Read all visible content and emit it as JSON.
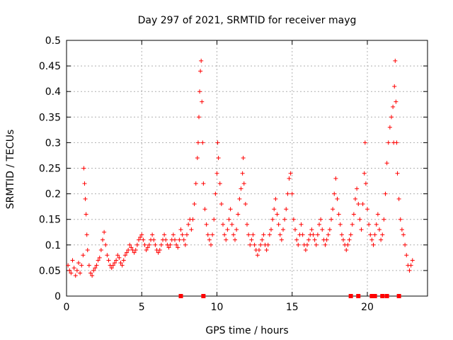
{
  "chart_data": {
    "type": "scatter",
    "title": "Day 297 of 2021, SRMTID for receiver mayg",
    "xlabel": "GPS time / hours",
    "ylabel": "SRMTID / TECUs",
    "xlim": [
      0,
      24
    ],
    "ylim": [
      0,
      0.5
    ],
    "grid": true,
    "x_ticks": [
      0,
      5,
      10,
      15,
      20
    ],
    "x_tick_labels": [
      "0",
      "5",
      "10",
      "15",
      "20"
    ],
    "y_ticks": [
      0,
      0.05,
      0.1,
      0.15,
      0.2,
      0.25,
      0.3,
      0.35,
      0.4,
      0.45,
      0.5
    ],
    "y_tick_labels": [
      "0",
      "0.05",
      "0.1",
      "0.15",
      "0.2",
      "0.25",
      "0.3",
      "0.35",
      "0.4",
      "0.45",
      "0.5"
    ],
    "marker": "plus",
    "color": "#ff0000",
    "series": [
      {
        "name": "SRMTID",
        "points": [
          [
            0.1,
            0.06
          ],
          [
            0.2,
            0.05
          ],
          [
            0.3,
            0.045
          ],
          [
            0.4,
            0.07
          ],
          [
            0.5,
            0.055
          ],
          [
            0.6,
            0.04
          ],
          [
            0.7,
            0.05
          ],
          [
            0.8,
            0.065
          ],
          [
            0.9,
            0.045
          ],
          [
            1.0,
            0.06
          ],
          [
            1.1,
            0.08
          ],
          [
            1.15,
            0.25
          ],
          [
            1.2,
            0.22
          ],
          [
            1.25,
            0.19
          ],
          [
            1.3,
            0.16
          ],
          [
            1.35,
            0.12
          ],
          [
            1.4,
            0.09
          ],
          [
            1.5,
            0.06
          ],
          [
            1.6,
            0.045
          ],
          [
            1.7,
            0.04
          ],
          [
            1.8,
            0.05
          ],
          [
            1.9,
            0.055
          ],
          [
            2.0,
            0.06
          ],
          [
            2.1,
            0.07
          ],
          [
            2.2,
            0.075
          ],
          [
            2.3,
            0.09
          ],
          [
            2.4,
            0.11
          ],
          [
            2.5,
            0.125
          ],
          [
            2.6,
            0.1
          ],
          [
            2.7,
            0.08
          ],
          [
            2.8,
            0.07
          ],
          [
            2.9,
            0.06
          ],
          [
            3.0,
            0.055
          ],
          [
            3.1,
            0.06
          ],
          [
            3.2,
            0.065
          ],
          [
            3.3,
            0.07
          ],
          [
            3.4,
            0.08
          ],
          [
            3.5,
            0.075
          ],
          [
            3.6,
            0.065
          ],
          [
            3.7,
            0.06
          ],
          [
            3.8,
            0.07
          ],
          [
            3.9,
            0.08
          ],
          [
            4.0,
            0.085
          ],
          [
            4.1,
            0.09
          ],
          [
            4.2,
            0.1
          ],
          [
            4.3,
            0.095
          ],
          [
            4.4,
            0.09
          ],
          [
            4.5,
            0.085
          ],
          [
            4.6,
            0.09
          ],
          [
            4.7,
            0.1
          ],
          [
            4.8,
            0.11
          ],
          [
            4.9,
            0.115
          ],
          [
            5.0,
            0.12
          ],
          [
            5.1,
            0.11
          ],
          [
            5.2,
            0.1
          ],
          [
            5.3,
            0.09
          ],
          [
            5.4,
            0.095
          ],
          [
            5.5,
            0.1
          ],
          [
            5.6,
            0.11
          ],
          [
            5.7,
            0.12
          ],
          [
            5.8,
            0.11
          ],
          [
            5.9,
            0.1
          ],
          [
            6.0,
            0.09
          ],
          [
            6.1,
            0.085
          ],
          [
            6.2,
            0.09
          ],
          [
            6.3,
            0.1
          ],
          [
            6.4,
            0.11
          ],
          [
            6.5,
            0.12
          ],
          [
            6.6,
            0.11
          ],
          [
            6.7,
            0.1
          ],
          [
            6.8,
            0.095
          ],
          [
            6.9,
            0.1
          ],
          [
            7.0,
            0.11
          ],
          [
            7.1,
            0.12
          ],
          [
            7.2,
            0.11
          ],
          [
            7.3,
            0.1
          ],
          [
            7.4,
            0.095
          ],
          [
            7.5,
            0.11
          ],
          [
            7.6,
            0.13
          ],
          [
            7.7,
            0.12
          ],
          [
            7.8,
            0.11
          ],
          [
            7.9,
            0.1
          ],
          [
            8.0,
            0.12
          ],
          [
            8.1,
            0.14
          ],
          [
            8.2,
            0.15
          ],
          [
            8.3,
            0.13
          ],
          [
            8.4,
            0.15
          ],
          [
            8.5,
            0.18
          ],
          [
            8.6,
            0.22
          ],
          [
            8.7,
            0.27
          ],
          [
            8.75,
            0.3
          ],
          [
            8.8,
            0.35
          ],
          [
            8.85,
            0.4
          ],
          [
            8.9,
            0.44
          ],
          [
            8.95,
            0.46
          ],
          [
            9.0,
            0.38
          ],
          [
            9.05,
            0.3
          ],
          [
            9.1,
            0.22
          ],
          [
            9.2,
            0.17
          ],
          [
            9.3,
            0.14
          ],
          [
            9.4,
            0.12
          ],
          [
            9.5,
            0.11
          ],
          [
            9.6,
            0.1
          ],
          [
            9.7,
            0.12
          ],
          [
            9.8,
            0.15
          ],
          [
            9.9,
            0.2
          ],
          [
            10.0,
            0.24
          ],
          [
            10.05,
            0.3
          ],
          [
            10.1,
            0.27
          ],
          [
            10.2,
            0.22
          ],
          [
            10.3,
            0.18
          ],
          [
            10.4,
            0.14
          ],
          [
            10.5,
            0.12
          ],
          [
            10.6,
            0.11
          ],
          [
            10.7,
            0.13
          ],
          [
            10.8,
            0.15
          ],
          [
            10.9,
            0.17
          ],
          [
            11.0,
            0.14
          ],
          [
            11.1,
            0.12
          ],
          [
            11.2,
            0.11
          ],
          [
            11.3,
            0.13
          ],
          [
            11.4,
            0.16
          ],
          [
            11.5,
            0.19
          ],
          [
            11.6,
            0.21
          ],
          [
            11.7,
            0.24
          ],
          [
            11.75,
            0.27
          ],
          [
            11.8,
            0.22
          ],
          [
            11.9,
            0.18
          ],
          [
            12.0,
            0.14
          ],
          [
            12.1,
            0.12
          ],
          [
            12.2,
            0.1
          ],
          [
            12.3,
            0.11
          ],
          [
            12.4,
            0.12
          ],
          [
            12.5,
            0.1
          ],
          [
            12.6,
            0.09
          ],
          [
            12.7,
            0.08
          ],
          [
            12.8,
            0.09
          ],
          [
            12.9,
            0.1
          ],
          [
            13.0,
            0.11
          ],
          [
            13.1,
            0.12
          ],
          [
            13.2,
            0.1
          ],
          [
            13.3,
            0.09
          ],
          [
            13.4,
            0.1
          ],
          [
            13.5,
            0.12
          ],
          [
            13.6,
            0.13
          ],
          [
            13.7,
            0.15
          ],
          [
            13.8,
            0.17
          ],
          [
            13.9,
            0.19
          ],
          [
            14.0,
            0.16
          ],
          [
            14.1,
            0.14
          ],
          [
            14.2,
            0.12
          ],
          [
            14.3,
            0.11
          ],
          [
            14.4,
            0.13
          ],
          [
            14.5,
            0.15
          ],
          [
            14.6,
            0.17
          ],
          [
            14.7,
            0.2
          ],
          [
            14.8,
            0.23
          ],
          [
            14.9,
            0.24
          ],
          [
            15.0,
            0.2
          ],
          [
            15.1,
            0.15
          ],
          [
            15.2,
            0.13
          ],
          [
            15.3,
            0.11
          ],
          [
            15.4,
            0.1
          ],
          [
            15.5,
            0.12
          ],
          [
            15.6,
            0.14
          ],
          [
            15.7,
            0.12
          ],
          [
            15.8,
            0.1
          ],
          [
            15.9,
            0.09
          ],
          [
            16.0,
            0.1
          ],
          [
            16.1,
            0.11
          ],
          [
            16.2,
            0.12
          ],
          [
            16.3,
            0.13
          ],
          [
            16.4,
            0.12
          ],
          [
            16.5,
            0.11
          ],
          [
            16.6,
            0.1
          ],
          [
            16.7,
            0.12
          ],
          [
            16.8,
            0.14
          ],
          [
            16.9,
            0.15
          ],
          [
            17.0,
            0.13
          ],
          [
            17.1,
            0.11
          ],
          [
            17.2,
            0.1
          ],
          [
            17.3,
            0.11
          ],
          [
            17.4,
            0.12
          ],
          [
            17.5,
            0.13
          ],
          [
            17.6,
            0.15
          ],
          [
            17.7,
            0.17
          ],
          [
            17.8,
            0.2
          ],
          [
            17.9,
            0.23
          ],
          [
            18.0,
            0.19
          ],
          [
            18.1,
            0.16
          ],
          [
            18.2,
            0.14
          ],
          [
            18.3,
            0.12
          ],
          [
            18.4,
            0.11
          ],
          [
            18.5,
            0.1
          ],
          [
            18.6,
            0.09
          ],
          [
            18.7,
            0.1
          ],
          [
            18.8,
            0.11
          ],
          [
            18.9,
            0.12
          ],
          [
            19.0,
            0.14
          ],
          [
            19.1,
            0.16
          ],
          [
            19.2,
            0.19
          ],
          [
            19.3,
            0.21
          ],
          [
            19.4,
            0.18
          ],
          [
            19.5,
            0.15
          ],
          [
            19.6,
            0.13
          ],
          [
            19.7,
            0.18
          ],
          [
            19.8,
            0.24
          ],
          [
            19.85,
            0.3
          ],
          [
            19.9,
            0.22
          ],
          [
            20.0,
            0.17
          ],
          [
            20.1,
            0.14
          ],
          [
            20.2,
            0.12
          ],
          [
            20.3,
            0.11
          ],
          [
            20.4,
            0.1
          ],
          [
            20.5,
            0.12
          ],
          [
            20.6,
            0.14
          ],
          [
            20.7,
            0.16
          ],
          [
            20.8,
            0.13
          ],
          [
            20.9,
            0.11
          ],
          [
            21.0,
            0.12
          ],
          [
            21.1,
            0.15
          ],
          [
            21.2,
            0.2
          ],
          [
            21.3,
            0.26
          ],
          [
            21.4,
            0.3
          ],
          [
            21.5,
            0.33
          ],
          [
            21.6,
            0.35
          ],
          [
            21.7,
            0.37
          ],
          [
            21.75,
            0.3
          ],
          [
            21.8,
            0.41
          ],
          [
            21.85,
            0.46
          ],
          [
            21.9,
            0.38
          ],
          [
            21.95,
            0.3
          ],
          [
            22.0,
            0.24
          ],
          [
            22.1,
            0.19
          ],
          [
            22.2,
            0.15
          ],
          [
            22.3,
            0.13
          ],
          [
            22.4,
            0.12
          ],
          [
            22.5,
            0.1
          ],
          [
            22.6,
            0.08
          ],
          [
            22.7,
            0.06
          ],
          [
            22.8,
            0.05
          ],
          [
            22.9,
            0.06
          ],
          [
            23.0,
            0.07
          ]
        ]
      }
    ],
    "zero_markers": [
      7.6,
      9.1,
      18.9,
      19.4,
      20.3,
      20.5,
      21.0,
      21.3,
      22.1
    ]
  }
}
